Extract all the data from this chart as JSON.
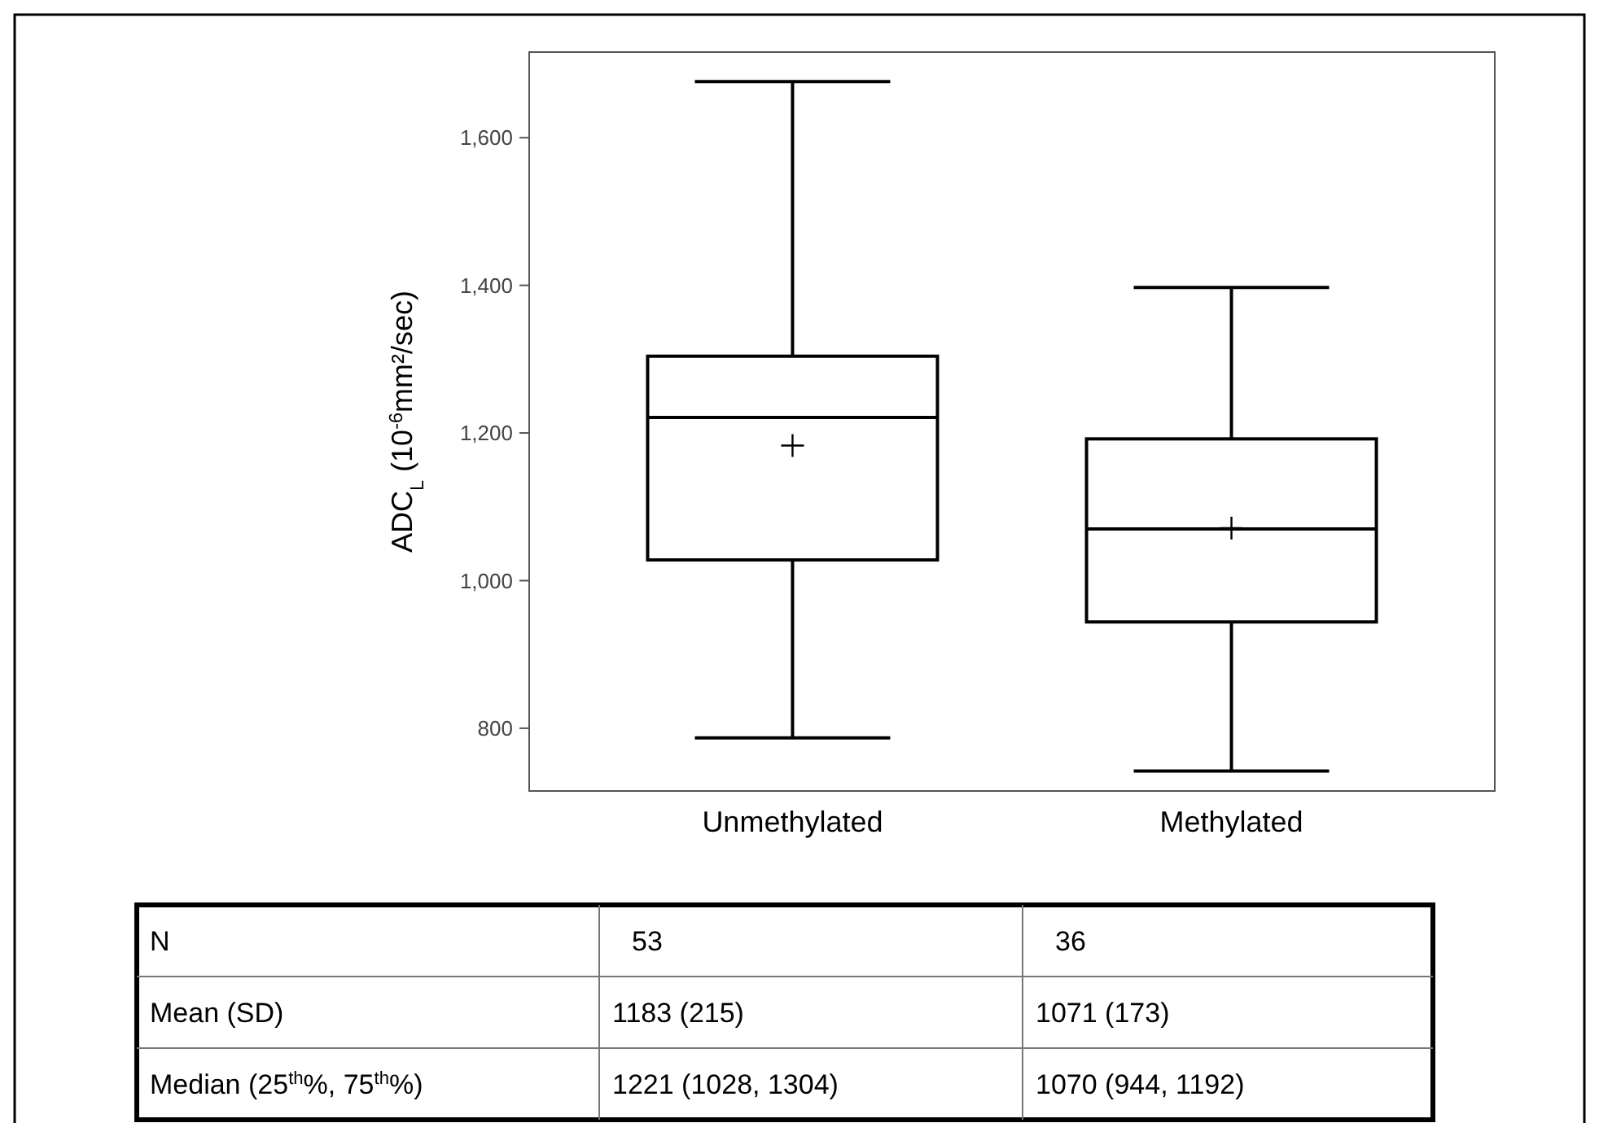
{
  "chart_data": {
    "type": "box",
    "ylabel": "ADC$_{L}$ (10$^{-6}$mm²/sec)",
    "categories": [
      "Unmethylated",
      "Methylated"
    ],
    "boxes": [
      {
        "low": 787,
        "q1": 1028,
        "median": 1221,
        "q3": 1304,
        "high": 1676,
        "mean": 1183
      },
      {
        "low": 742,
        "q1": 944,
        "median": 1070,
        "q3": 1192,
        "high": 1397,
        "mean": 1071
      }
    ],
    "color": "#000000",
    "ylim": [
      715,
      1716
    ],
    "yticks": [
      {
        "value": 800,
        "label": "800"
      },
      {
        "value": 1000,
        "label": "1,000"
      },
      {
        "value": 1200,
        "label": "1,200"
      },
      {
        "value": 1400,
        "label": "1,400"
      },
      {
        "value": 1600,
        "label": "1,600"
      }
    ],
    "annotations": [
      "N",
      "53",
      "36",
      "Mean (SD)",
      "1183  (215)",
      "1071 (173)",
      "Median (25$^{th}$%, 75$^{th}$%)",
      "1221 (1028, 1304)",
      "1070 (944, 1192)"
    ]
  }
}
